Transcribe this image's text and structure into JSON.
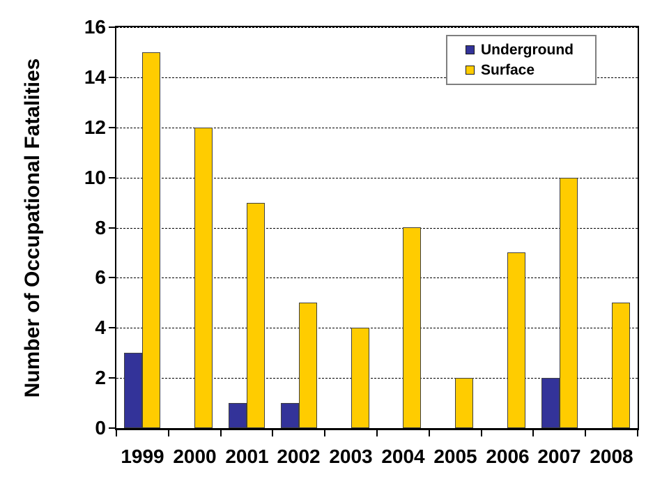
{
  "chart_data": {
    "type": "bar",
    "title": "",
    "ylabel": "Number of Occupational Fatalities",
    "xlabel": "",
    "categories": [
      "1999",
      "2000",
      "2001",
      "2002",
      "2003",
      "2004",
      "2005",
      "2006",
      "2007",
      "2008"
    ],
    "series": [
      {
        "name": "Underground",
        "color": "#333399",
        "values": [
          3,
          0,
          1,
          1,
          0,
          0,
          0,
          0,
          2,
          0
        ]
      },
      {
        "name": "Surface",
        "color": "#FFCC00",
        "values": [
          15,
          12,
          9,
          5,
          4,
          8,
          2,
          7,
          10,
          5
        ]
      }
    ],
    "ylim": [
      0,
      16
    ],
    "yticks": [
      0,
      2,
      4,
      6,
      8,
      10,
      12,
      14,
      16
    ],
    "grid": "horizontal-dashed",
    "legend_position": "upper-right"
  },
  "colors": {
    "underground": "#333399",
    "surface": "#FFCC00",
    "bar_border": "#404040",
    "axis": "#000000",
    "gridline": "#000000",
    "legend_border": "#7F7F7F",
    "background": "#FFFFFF",
    "text": "#000000"
  }
}
